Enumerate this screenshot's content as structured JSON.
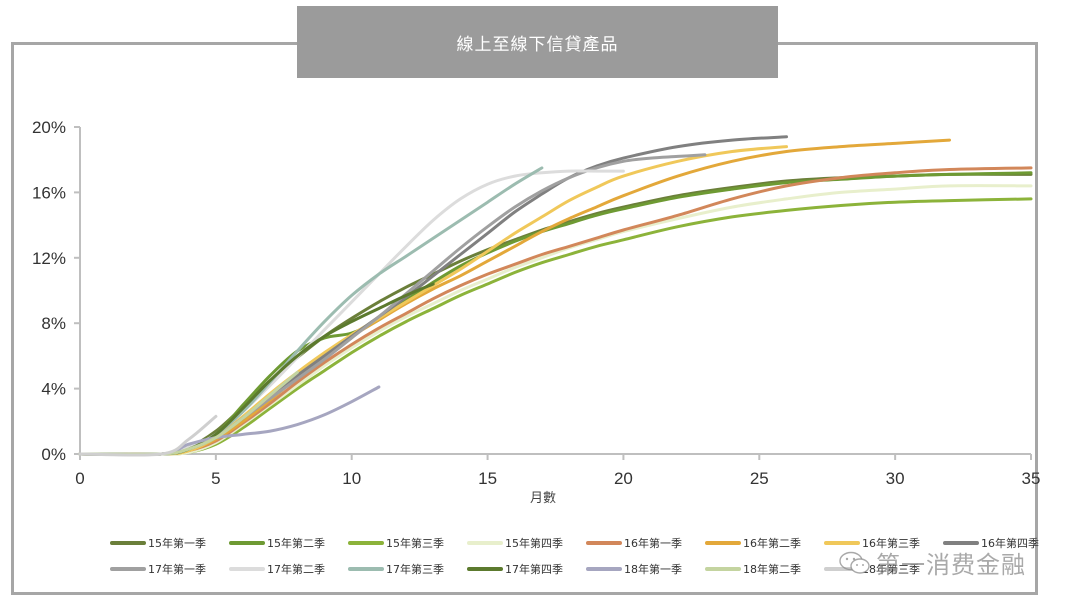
{
  "title": "線上至線下信貸產品",
  "watermark": {
    "text": "第一消费金融",
    "icon": "wechat-icon"
  },
  "chart_data": {
    "type": "line",
    "title": "線上至線下信貸產品",
    "xlabel": "月數",
    "ylabel": "",
    "xlim": [
      0,
      35
    ],
    "ylim": [
      0,
      20
    ],
    "x_ticks": [
      "0",
      "5",
      "10",
      "15",
      "20",
      "25",
      "30",
      "35"
    ],
    "y_ticks": [
      "0%",
      "4%",
      "8%",
      "12%",
      "16%",
      "20%"
    ],
    "grid": false,
    "legend_position": "bottom",
    "series": [
      {
        "name": "15年第一季",
        "color": "#6b7f3a",
        "x": [
          0,
          3,
          4,
          5,
          6,
          7,
          8,
          9,
          10,
          11,
          12,
          13,
          14,
          15,
          16,
          17,
          18,
          19,
          20,
          22,
          24,
          26,
          28,
          30,
          32,
          35
        ],
        "values": [
          0,
          0,
          0.4,
          1.4,
          2.9,
          4.5,
          5.9,
          7.2,
          8.3,
          9.3,
          10.2,
          11.0,
          11.8,
          12.5,
          13.1,
          13.7,
          14.2,
          14.7,
          15.1,
          15.8,
          16.3,
          16.7,
          16.9,
          17.0,
          17.1,
          17.1
        ]
      },
      {
        "name": "15年第二季",
        "color": "#6e9a33",
        "x": [
          0,
          3,
          4,
          5,
          6,
          7,
          8,
          9,
          10,
          11,
          12,
          13,
          14,
          15,
          16,
          17,
          18,
          19,
          20,
          22,
          24,
          26,
          28,
          30,
          32,
          35
        ],
        "values": [
          0,
          0,
          0.3,
          1.2,
          3.0,
          4.8,
          6.3,
          7.1,
          7.4,
          8.2,
          9.4,
          10.5,
          11.5,
          12.3,
          13.0,
          13.6,
          14.1,
          14.6,
          15.0,
          15.7,
          16.2,
          16.6,
          16.8,
          17.0,
          17.1,
          17.2
        ]
      },
      {
        "name": "15年第三季",
        "color": "#8cb33a",
        "x": [
          0,
          3,
          4,
          5,
          6,
          7,
          8,
          9,
          10,
          11,
          12,
          13,
          14,
          15,
          16,
          17,
          18,
          19,
          20,
          22,
          24,
          26,
          28,
          30,
          32,
          35
        ],
        "values": [
          0,
          0,
          0.1,
          0.6,
          1.6,
          2.8,
          4.0,
          5.1,
          6.2,
          7.2,
          8.1,
          8.9,
          9.7,
          10.4,
          11.1,
          11.7,
          12.2,
          12.7,
          13.1,
          13.9,
          14.5,
          14.9,
          15.2,
          15.4,
          15.5,
          15.6
        ]
      },
      {
        "name": "15年第四季",
        "color": "#e8efcc",
        "x": [
          0,
          3,
          4,
          5,
          6,
          7,
          8,
          9,
          10,
          11,
          12,
          13,
          14,
          15,
          16,
          17,
          18,
          19,
          20,
          22,
          24,
          26,
          28,
          30,
          32,
          35
        ],
        "values": [
          0,
          0,
          0.1,
          0.7,
          1.8,
          3.0,
          4.2,
          5.4,
          6.5,
          7.5,
          8.4,
          9.2,
          10.0,
          10.7,
          11.4,
          12.0,
          12.6,
          13.1,
          13.6,
          14.4,
          15.1,
          15.6,
          16.0,
          16.2,
          16.4,
          16.4
        ]
      },
      {
        "name": "16年第一季",
        "color": "#d2875a",
        "x": [
          0,
          3,
          4,
          5,
          6,
          7,
          8,
          9,
          10,
          11,
          12,
          13,
          14,
          15,
          16,
          17,
          18,
          19,
          20,
          22,
          24,
          26,
          28,
          30,
          32,
          35
        ],
        "values": [
          0,
          0,
          0.2,
          0.8,
          1.9,
          3.1,
          4.4,
          5.6,
          6.7,
          7.7,
          8.6,
          9.5,
          10.3,
          11.0,
          11.6,
          12.2,
          12.7,
          13.2,
          13.7,
          14.6,
          15.6,
          16.4,
          16.9,
          17.2,
          17.4,
          17.5
        ]
      },
      {
        "name": "16年第二季",
        "color": "#e3a83a",
        "x": [
          0,
          3,
          4,
          5,
          6,
          7,
          8,
          9,
          10,
          11,
          12,
          13,
          14,
          15,
          16,
          17,
          18,
          19,
          20,
          22,
          24,
          26,
          28,
          30,
          32
        ],
        "values": [
          0,
          0,
          0.2,
          0.9,
          2.0,
          3.3,
          4.7,
          6.0,
          7.2,
          8.2,
          9.2,
          10.1,
          10.9,
          11.8,
          12.7,
          13.6,
          14.4,
          15.1,
          15.8,
          17.0,
          17.9,
          18.5,
          18.8,
          19.0,
          19.2
        ]
      },
      {
        "name": "16年第三季",
        "color": "#f0c85a",
        "x": [
          0,
          3,
          4,
          5,
          6,
          7,
          8,
          9,
          10,
          11,
          12,
          13,
          14,
          15,
          16,
          17,
          18,
          19,
          20,
          22,
          24,
          26
        ],
        "values": [
          0,
          0,
          0.2,
          1.0,
          2.3,
          3.7,
          5.0,
          6.2,
          7.3,
          8.3,
          9.3,
          10.3,
          11.3,
          12.4,
          13.5,
          14.5,
          15.5,
          16.3,
          17.0,
          17.9,
          18.5,
          18.8
        ]
      },
      {
        "name": "16年第四季",
        "color": "#808080",
        "x": [
          0,
          3,
          4,
          5,
          6,
          7,
          8,
          9,
          10,
          11,
          12,
          13,
          14,
          15,
          16,
          17,
          18,
          19,
          20,
          22,
          24,
          26
        ],
        "values": [
          0,
          0,
          0.3,
          1.0,
          2.2,
          3.5,
          4.8,
          6.0,
          7.2,
          8.4,
          9.6,
          10.9,
          12.2,
          13.5,
          14.8,
          15.9,
          16.9,
          17.6,
          18.1,
          18.8,
          19.2,
          19.4
        ]
      },
      {
        "name": "17年第一季",
        "color": "#a0a0a0",
        "x": [
          0,
          3,
          4,
          5,
          6,
          7,
          8,
          9,
          10,
          11,
          12,
          13,
          14,
          15,
          16,
          17,
          18,
          19,
          20,
          21,
          22,
          23
        ],
        "values": [
          0,
          0,
          0.3,
          1.0,
          2.2,
          3.4,
          4.6,
          5.8,
          7.1,
          8.4,
          9.8,
          11.2,
          12.6,
          13.9,
          15.1,
          16.1,
          16.9,
          17.5,
          17.9,
          18.1,
          18.2,
          18.3
        ]
      },
      {
        "name": "17年第二季",
        "color": "#dcdcdc",
        "x": [
          0,
          3,
          4,
          5,
          6,
          7,
          8,
          9,
          10,
          11,
          12,
          13,
          14,
          15,
          16,
          17,
          18,
          19,
          20
        ],
        "values": [
          0,
          0,
          0.4,
          1.2,
          2.6,
          4.2,
          5.9,
          7.6,
          9.3,
          11.0,
          12.7,
          14.3,
          15.6,
          16.5,
          17.0,
          17.2,
          17.3,
          17.3,
          17.3
        ]
      },
      {
        "name": "17年第三季",
        "color": "#9cbcb0",
        "x": [
          0,
          3,
          4,
          5,
          6,
          7,
          8,
          9,
          10,
          11,
          12,
          13,
          14,
          15,
          16,
          17
        ],
        "values": [
          0,
          0,
          0.3,
          1.2,
          2.6,
          4.4,
          6.3,
          8.1,
          9.7,
          11.0,
          12.1,
          13.2,
          14.3,
          15.4,
          16.5,
          17.5
        ]
      },
      {
        "name": "17年第四季",
        "color": "#5c7a2e",
        "x": [
          0,
          3,
          4,
          5,
          6,
          7,
          8,
          9,
          10,
          11,
          12,
          13
        ],
        "values": [
          0,
          0,
          0.3,
          1.2,
          2.8,
          4.5,
          6.0,
          7.2,
          8.1,
          8.9,
          9.7,
          10.4
        ]
      },
      {
        "name": "18年第一季",
        "color": "#a6a6c0",
        "x": [
          0,
          3,
          4,
          5,
          6,
          7,
          8,
          9,
          10,
          11
        ],
        "values": [
          0,
          0,
          0.6,
          1.0,
          1.2,
          1.4,
          1.8,
          2.4,
          3.2,
          4.1
        ]
      },
      {
        "name": "18年第二季",
        "color": "#c4d4a0",
        "x": [
          0,
          3,
          4,
          5,
          6,
          7,
          8
        ],
        "values": [
          0,
          0,
          0.3,
          1.0,
          2.2,
          3.6,
          5.0
        ]
      },
      {
        "name": "18年第三季",
        "color": "#cfcfcf",
        "x": [
          0,
          3,
          4,
          5
        ],
        "values": [
          0,
          0,
          0.9,
          2.3
        ]
      }
    ]
  }
}
